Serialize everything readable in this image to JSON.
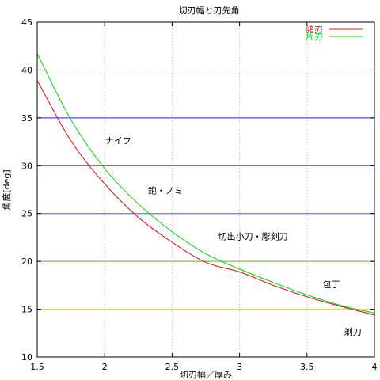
{
  "chart_data": {
    "type": "line",
    "title": "切刃幅と刃先角",
    "xlabel": "切刃幅／厚み",
    "ylabel": "角度[deg]",
    "xlim": [
      1.5,
      4
    ],
    "ylim": [
      10,
      45
    ],
    "xticks": [
      "1.5",
      "2",
      "2.5",
      "3",
      "3.5",
      "4"
    ],
    "yticks": [
      "10",
      "15",
      "20",
      "25",
      "30",
      "35",
      "40",
      "45"
    ],
    "grid": true,
    "legend_position": "top-right",
    "series": [
      {
        "name": "諸刃",
        "color": "#d22020",
        "x": [
          1.5,
          1.75,
          2.0,
          2.25,
          2.5,
          2.75,
          3.0,
          3.25,
          3.5,
          3.75,
          4.0
        ],
        "y": [
          38.9,
          32.6,
          28.1,
          24.6,
          22.0,
          19.9,
          18.9,
          17.5,
          16.3,
          15.3,
          14.4
        ]
      },
      {
        "name": "片刃",
        "color": "#20d020",
        "x": [
          1.5,
          1.75,
          2.0,
          2.25,
          2.5,
          2.75,
          3.0,
          3.25,
          3.5,
          3.75,
          4.0
        ],
        "y": [
          41.7,
          34.8,
          29.7,
          26.0,
          23.1,
          20.8,
          19.2,
          17.8,
          16.5,
          15.4,
          14.6
        ]
      }
    ],
    "reference_lines": [
      {
        "y": 35,
        "color": "#5050d0"
      },
      {
        "y": 30,
        "color": "#b040b0"
      },
      {
        "y": 25,
        "color": "#6080e0"
      },
      {
        "y": 20,
        "color": "#80c060"
      },
      {
        "y": 15,
        "color": "#e0e040"
      }
    ],
    "annotations": [
      {
        "text": "ナイフ",
        "x": 2.1,
        "y": 32.3
      },
      {
        "text": "鉋・ノミ",
        "x": 2.45,
        "y": 27.1
      },
      {
        "text": "切出小刀・彫刻刀",
        "x": 3.1,
        "y": 22.3
      },
      {
        "text": "包丁",
        "x": 3.68,
        "y": 17.3
      },
      {
        "text": "剃刀",
        "x": 3.84,
        "y": 12.3
      }
    ]
  }
}
